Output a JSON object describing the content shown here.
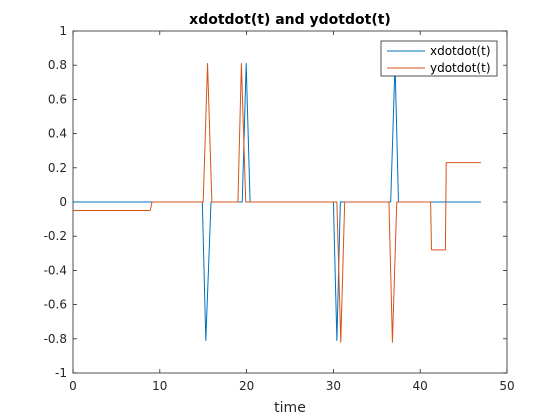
{
  "chart_data": {
    "type": "line",
    "title": "xdotdot(t) and ydotdot(t)",
    "xlabel": "time",
    "ylabel": "",
    "xlim": [
      0,
      50
    ],
    "ylim": [
      -1,
      1
    ],
    "xticks": [
      0,
      10,
      20,
      30,
      40,
      50
    ],
    "yticks": [
      -1,
      -0.8,
      -0.6,
      -0.4,
      -0.2,
      0,
      0.2,
      0.4,
      0.6,
      0.8,
      1
    ],
    "xtick_labels": [
      "0",
      "10",
      "20",
      "30",
      "40",
      "50"
    ],
    "ytick_labels": [
      "-1",
      "-0.8",
      "-0.6",
      "-0.4",
      "-0.2",
      "0",
      "0.2",
      "0.4",
      "0.6",
      "0.8",
      "1"
    ],
    "grid": false,
    "legend_position": "top-right",
    "series": [
      {
        "name": "xdotdot(t)",
        "color": "#0072BD",
        "x": [
          0,
          14.9,
          15.3,
          15.9,
          19.5,
          19.95,
          20.4,
          30.0,
          30.4,
          30.8,
          36.6,
          37.1,
          37.5,
          47.0
        ],
        "y": [
          0,
          0,
          -0.81,
          0,
          0,
          0.81,
          0,
          0,
          -0.81,
          0,
          0,
          0.81,
          0,
          0
        ]
      },
      {
        "name": "ydotdot(t)",
        "color": "#D95319",
        "x": [
          0,
          8.9,
          9.1,
          15.0,
          15.5,
          16.0,
          19.0,
          19.4,
          19.9,
          30.4,
          30.85,
          31.3,
          36.4,
          36.8,
          37.3,
          41.2,
          41.3,
          42.9,
          43.0,
          47.0
        ],
        "y": [
          -0.05,
          -0.05,
          0,
          0,
          0.81,
          0,
          0,
          0.81,
          0,
          0,
          -0.82,
          0,
          0,
          -0.82,
          0,
          0,
          -0.28,
          -0.28,
          0.23,
          0.23
        ]
      }
    ]
  }
}
